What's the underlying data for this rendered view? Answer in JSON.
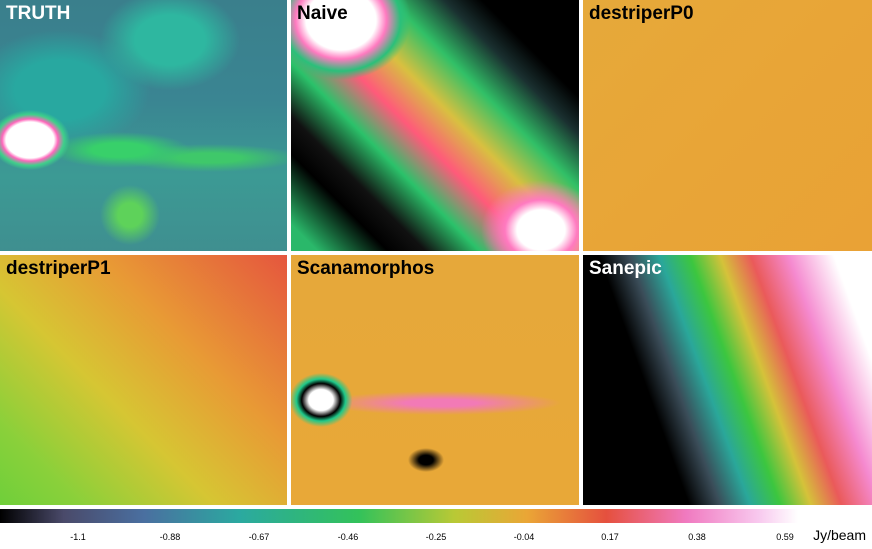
{
  "panels": {
    "truth": "TRUTH",
    "naive": "Naive",
    "destriper_p0": "destriperP0",
    "destriper_p1": "destriperP1",
    "scanamorphos": "Scanamorphos",
    "sanepic": "Sanepic"
  },
  "colorbar": {
    "ticks": [
      "-1.1",
      "-0.88",
      "-0.67",
      "-0.46",
      "-0.25",
      "-0.04",
      "0.17",
      "0.38",
      "0.59"
    ],
    "unit": "Jy/beam",
    "colors": [
      "#000000",
      "#4a6fa0",
      "#2ba9a0",
      "#33c25a",
      "#b9c935",
      "#eaa636",
      "#e5503e",
      "#f07ac0",
      "#ffffff"
    ]
  }
}
